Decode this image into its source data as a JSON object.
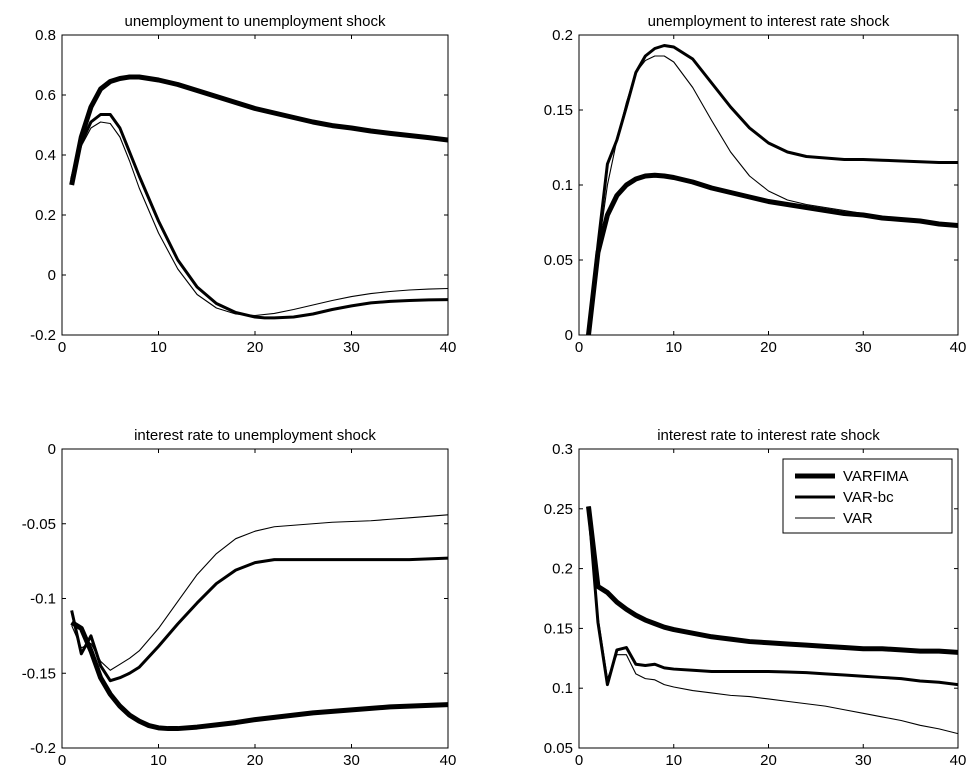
{
  "chart_data": [
    {
      "type": "line",
      "title": "unemployment to unemployment shock",
      "xlim": [
        0,
        40
      ],
      "ylim": [
        -0.2,
        0.8
      ],
      "xticks": [
        "10",
        "20",
        "30",
        "40"
      ],
      "xtick_values": [
        10,
        20,
        30,
        40
      ],
      "yticks": [
        "-0.2",
        "0",
        "0.2",
        "0.4",
        "0.6",
        "0.8"
      ],
      "ytick_values": [
        -0.2,
        0,
        0.2,
        0.4,
        0.6,
        0.8
      ],
      "xtick_zero": "0",
      "grid": false,
      "series": [
        {
          "x": [
            1,
            2,
            3,
            4,
            5,
            6,
            7,
            8,
            10,
            12,
            14,
            16,
            18,
            20,
            22,
            24,
            26,
            28,
            30,
            32,
            34,
            36,
            38,
            40
          ],
          "y": [
            0.3,
            0.46,
            0.56,
            0.62,
            0.645,
            0.655,
            0.66,
            0.66,
            0.65,
            0.635,
            0.615,
            0.595,
            0.575,
            0.555,
            0.54,
            0.525,
            0.51,
            0.498,
            0.49,
            0.48,
            0.472,
            0.465,
            0.458,
            0.45
          ]
        },
        {
          "x": [
            1,
            2,
            3,
            4,
            5,
            6,
            7,
            8,
            10,
            12,
            14,
            16,
            18,
            20,
            21,
            22,
            24,
            26,
            28,
            30,
            32,
            34,
            36,
            38,
            40
          ],
          "y": [
            0.32,
            0.44,
            0.51,
            0.535,
            0.535,
            0.49,
            0.41,
            0.33,
            0.18,
            0.05,
            -0.04,
            -0.095,
            -0.125,
            -0.14,
            -0.143,
            -0.143,
            -0.14,
            -0.13,
            -0.115,
            -0.103,
            -0.093,
            -0.088,
            -0.085,
            -0.083,
            -0.082
          ]
        },
        {
          "x": [
            1,
            2,
            3,
            4,
            5,
            6,
            7,
            8,
            10,
            12,
            14,
            16,
            18,
            20,
            22,
            24,
            26,
            28,
            30,
            32,
            34,
            36,
            38,
            40
          ],
          "y": [
            0.31,
            0.43,
            0.49,
            0.51,
            0.505,
            0.46,
            0.38,
            0.29,
            0.14,
            0.02,
            -0.065,
            -0.11,
            -0.13,
            -0.135,
            -0.128,
            -0.115,
            -0.1,
            -0.085,
            -0.072,
            -0.062,
            -0.055,
            -0.05,
            -0.047,
            -0.045
          ]
        }
      ]
    },
    {
      "type": "line",
      "title": "unemployment to interest rate shock",
      "xlim": [
        0,
        40
      ],
      "ylim": [
        0,
        0.2
      ],
      "xticks": [
        "10",
        "20",
        "30",
        "40"
      ],
      "xtick_values": [
        10,
        20,
        30,
        40
      ],
      "yticks": [
        "0",
        "0.05",
        "0.1",
        "0.15",
        "0.2"
      ],
      "ytick_values": [
        0,
        0.05,
        0.1,
        0.15,
        0.2
      ],
      "xtick_zero": "0",
      "grid": false,
      "series": [
        {
          "x": [
            1,
            2,
            3,
            4,
            5,
            6,
            7,
            8,
            9,
            10,
            12,
            14,
            16,
            18,
            20,
            22,
            24,
            26,
            28,
            30,
            32,
            34,
            36,
            38,
            40
          ],
          "y": [
            0,
            0.055,
            0.08,
            0.093,
            0.1,
            0.104,
            0.106,
            0.1065,
            0.106,
            0.105,
            0.102,
            0.098,
            0.095,
            0.092,
            0.089,
            0.087,
            0.085,
            0.083,
            0.081,
            0.08,
            0.078,
            0.077,
            0.076,
            0.074,
            0.073
          ]
        },
        {
          "x": [
            1,
            2,
            3,
            4,
            5,
            6,
            7,
            8,
            9,
            10,
            12,
            14,
            16,
            18,
            20,
            22,
            24,
            26,
            28,
            30,
            32,
            34,
            36,
            38,
            40
          ],
          "y": [
            0,
            0.06,
            0.114,
            0.13,
            0.152,
            0.175,
            0.186,
            0.191,
            0.193,
            0.192,
            0.184,
            0.168,
            0.152,
            0.138,
            0.128,
            0.122,
            0.119,
            0.118,
            0.117,
            0.117,
            0.1165,
            0.116,
            0.1155,
            0.115,
            0.115
          ]
        },
        {
          "x": [
            1,
            2,
            3,
            4,
            5,
            6,
            7,
            8,
            9,
            10,
            12,
            14,
            16,
            18,
            20,
            22,
            24,
            26,
            28,
            30,
            32,
            34,
            36,
            38,
            40
          ],
          "y": [
            0,
            0.055,
            0.1,
            0.13,
            0.155,
            0.175,
            0.183,
            0.186,
            0.186,
            0.182,
            0.165,
            0.143,
            0.122,
            0.106,
            0.096,
            0.09,
            0.087,
            0.085,
            0.083,
            0.081,
            0.079,
            0.078,
            0.077,
            0.075,
            0.074
          ]
        }
      ]
    },
    {
      "type": "line",
      "title": "interest rate to unemployment shock",
      "xlim": [
        0,
        40
      ],
      "ylim": [
        -0.2,
        0
      ],
      "xticks": [
        "10",
        "20",
        "30",
        "40"
      ],
      "xtick_values": [
        10,
        20,
        30,
        40
      ],
      "yticks": [
        "-0.2",
        "-0.15",
        "-0.1",
        "-0.05",
        "0"
      ],
      "ytick_values": [
        -0.2,
        -0.15,
        -0.1,
        -0.05,
        0
      ],
      "xtick_zero": "0",
      "grid": false,
      "series": [
        {
          "x": [
            1,
            2,
            3,
            4,
            5,
            6,
            7,
            8,
            9,
            10,
            11,
            12,
            14,
            16,
            18,
            20,
            22,
            24,
            26,
            28,
            30,
            32,
            34,
            36,
            38,
            40
          ],
          "y": [
            -0.116,
            -0.12,
            -0.135,
            -0.153,
            -0.164,
            -0.172,
            -0.178,
            -0.182,
            -0.185,
            -0.1865,
            -0.187,
            -0.187,
            -0.186,
            -0.1845,
            -0.183,
            -0.181,
            -0.1795,
            -0.178,
            -0.1765,
            -0.1755,
            -0.1745,
            -0.1735,
            -0.1725,
            -0.172,
            -0.1715,
            -0.171
          ]
        },
        {
          "x": [
            1,
            2,
            3,
            4,
            5,
            6,
            7,
            8,
            10,
            12,
            14,
            16,
            18,
            20,
            22,
            24,
            26,
            28,
            30,
            32,
            34,
            36,
            38,
            40
          ],
          "y": [
            -0.108,
            -0.137,
            -0.125,
            -0.145,
            -0.155,
            -0.153,
            -0.15,
            -0.146,
            -0.132,
            -0.117,
            -0.103,
            -0.09,
            -0.081,
            -0.076,
            -0.074,
            -0.074,
            -0.074,
            -0.074,
            -0.074,
            -0.074,
            -0.074,
            -0.074,
            -0.0735,
            -0.073
          ]
        },
        {
          "x": [
            1,
            2,
            3,
            4,
            5,
            6,
            7,
            8,
            10,
            12,
            14,
            16,
            18,
            20,
            22,
            24,
            26,
            28,
            30,
            32,
            34,
            36,
            38,
            40
          ],
          "y": [
            -0.118,
            -0.133,
            -0.13,
            -0.142,
            -0.148,
            -0.144,
            -0.14,
            -0.135,
            -0.12,
            -0.102,
            -0.084,
            -0.07,
            -0.06,
            -0.055,
            -0.052,
            -0.051,
            -0.05,
            -0.049,
            -0.0485,
            -0.048,
            -0.047,
            -0.046,
            -0.045,
            -0.044
          ]
        }
      ]
    },
    {
      "type": "line",
      "title": "interest rate to interest rate shock",
      "xlim": [
        0,
        40
      ],
      "ylim": [
        0.05,
        0.3
      ],
      "xticks": [
        "10",
        "20",
        "30",
        "40"
      ],
      "xtick_values": [
        10,
        20,
        30,
        40
      ],
      "yticks": [
        "0.05",
        "0.1",
        "0.15",
        "0.2",
        "0.25",
        "0.3"
      ],
      "ytick_values": [
        0.05,
        0.1,
        0.15,
        0.2,
        0.25,
        0.3
      ],
      "xtick_zero": "0",
      "grid": false,
      "legend": {
        "location": "top-right",
        "entries": [
          "VARFIMA",
          "VAR-bc",
          "VAR"
        ]
      },
      "series": [
        {
          "name": "VARFIMA",
          "x": [
            1,
            2,
            3,
            4,
            5,
            6,
            7,
            8,
            9,
            10,
            12,
            14,
            16,
            18,
            20,
            22,
            24,
            26,
            28,
            30,
            32,
            34,
            36,
            38,
            40
          ],
          "y": [
            0.252,
            0.185,
            0.18,
            0.172,
            0.166,
            0.161,
            0.157,
            0.154,
            0.151,
            0.149,
            0.146,
            0.143,
            0.141,
            0.139,
            0.138,
            0.137,
            0.136,
            0.135,
            0.134,
            0.133,
            0.133,
            0.132,
            0.131,
            0.131,
            0.13
          ]
        },
        {
          "name": "VAR-bc",
          "x": [
            1,
            2,
            3,
            4,
            5,
            6,
            7,
            8,
            9,
            10,
            12,
            14,
            16,
            18,
            20,
            22,
            24,
            26,
            28,
            30,
            32,
            34,
            36,
            38,
            40
          ],
          "y": [
            0.252,
            0.155,
            0.103,
            0.132,
            0.134,
            0.12,
            0.119,
            0.12,
            0.117,
            0.116,
            0.115,
            0.114,
            0.114,
            0.114,
            0.114,
            0.1135,
            0.113,
            0.112,
            0.111,
            0.11,
            0.109,
            0.108,
            0.106,
            0.105,
            0.103
          ]
        },
        {
          "name": "VAR",
          "x": [
            1,
            2,
            3,
            4,
            5,
            6,
            7,
            8,
            9,
            10,
            12,
            14,
            16,
            18,
            20,
            22,
            24,
            26,
            28,
            30,
            32,
            34,
            36,
            38,
            40
          ],
          "y": [
            0.25,
            0.16,
            0.108,
            0.128,
            0.128,
            0.112,
            0.108,
            0.107,
            0.103,
            0.101,
            0.098,
            0.096,
            0.094,
            0.093,
            0.091,
            0.089,
            0.087,
            0.085,
            0.082,
            0.079,
            0.076,
            0.073,
            0.069,
            0.066,
            0.062
          ]
        }
      ]
    }
  ],
  "style": {
    "line_color": "#000000",
    "series_stroke_widths": [
      5,
      3,
      1.1
    ]
  }
}
